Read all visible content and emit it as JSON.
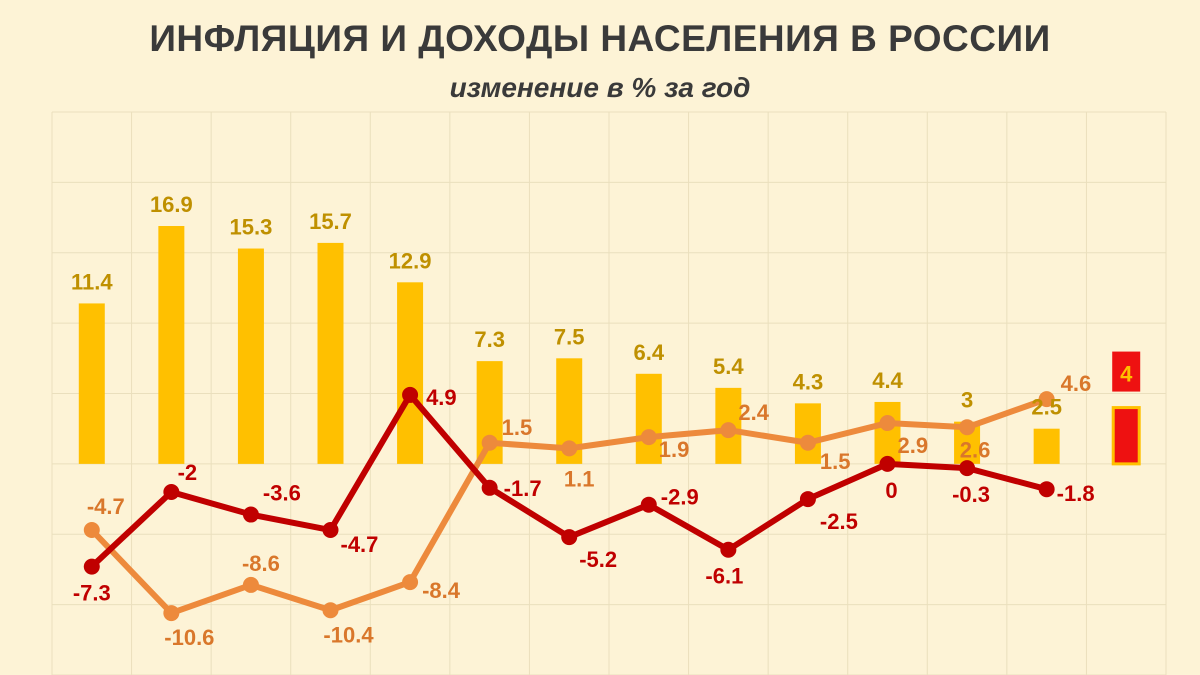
{
  "title": "ИНФЛЯЦИЯ И ДОХОДЫ НАСЕЛЕНИЯ В РОССИИ",
  "subtitle": "изменение в % за год",
  "colors": {
    "background": "#fdf3d6",
    "grid": "#eadfbd",
    "bars": "#ffc000",
    "bar_labels": "#bf9000",
    "line_dark": "#c00000",
    "line_light": "#ed8a3c",
    "line_light_labels": "#d9772b",
    "highlight_bar": "#ee1111",
    "highlight_border": "#ffc000"
  },
  "chart_data": {
    "type": "bar+line",
    "grid": true,
    "ylim": [
      -15,
      25
    ],
    "series": [
      {
        "type": "bar",
        "values": [
          11.4,
          16.9,
          15.3,
          15.7,
          12.9,
          7.3,
          7.5,
          6.4,
          5.4,
          4.3,
          4.4,
          3,
          2.5,
          4
        ],
        "labels": [
          "11.4",
          "16.9",
          "15.3",
          "15.7",
          "12.9",
          "7.3",
          "7.5",
          "6.4",
          "5.4",
          "4.3",
          "4.4",
          "3",
          "2.5",
          "4"
        ]
      },
      {
        "type": "line",
        "values": [
          -7.3,
          -2,
          -3.6,
          -4.7,
          4.9,
          -1.7,
          -5.2,
          -2.9,
          -6.1,
          -2.5,
          0,
          -0.3,
          -1.8
        ],
        "labels": [
          "-7.3",
          "-2",
          "-3.6",
          "-4.7",
          "4.9",
          "-1.7",
          "-5.2",
          "-2.9",
          "-6.1",
          "-2.5",
          "0",
          "-0.3",
          "-1.8"
        ]
      },
      {
        "type": "line",
        "values": [
          -4.7,
          -10.6,
          -8.6,
          -10.4,
          -8.4,
          1.5,
          1.1,
          1.9,
          2.4,
          1.5,
          2.9,
          2.6,
          4.6
        ],
        "labels": [
          "-4.7",
          "-10.6",
          "-8.6",
          "-10.4",
          "-8.4",
          "1.5",
          "1.1",
          "1.9",
          "2.4",
          "1.5",
          "2.9",
          "2.6",
          "4.6"
        ]
      }
    ]
  }
}
